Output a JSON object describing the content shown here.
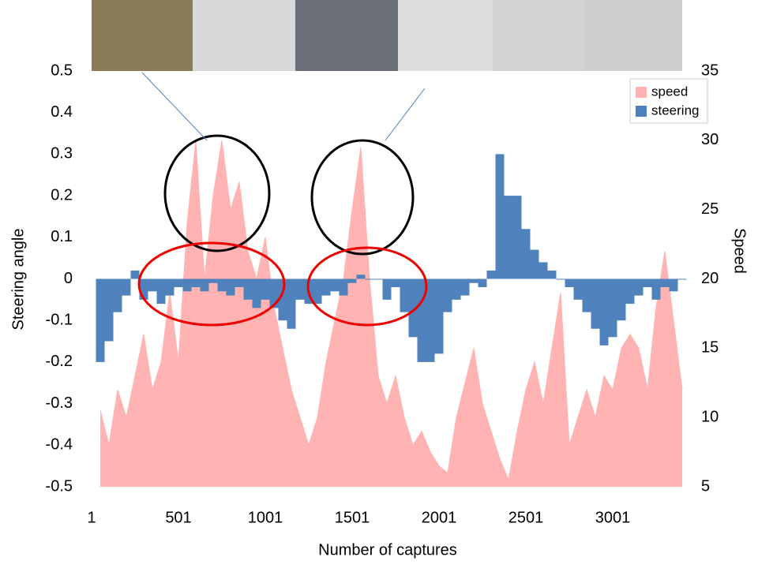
{
  "chart_data": {
    "type": "combo",
    "x_label": "Number of captures",
    "y_label": "Steering angle",
    "y2_label": "Speed",
    "x": [
      51,
      101,
      151,
      201,
      251,
      301,
      351,
      401,
      451,
      501,
      551,
      601,
      651,
      701,
      751,
      801,
      851,
      901,
      951,
      1001,
      1051,
      1101,
      1151,
      1201,
      1251,
      1301,
      1351,
      1401,
      1451,
      1501,
      1551,
      1601,
      1651,
      1701,
      1751,
      1801,
      1851,
      1901,
      1951,
      2001,
      2051,
      2101,
      2151,
      2201,
      2251,
      2301,
      2351,
      2401,
      2451,
      2501,
      2551,
      2601,
      2651,
      2701,
      2751,
      2801,
      2851,
      2901,
      2951,
      3001,
      3051,
      3101,
      3151,
      3201,
      3251,
      3301,
      3351,
      3401
    ],
    "series": [
      {
        "name": "speed",
        "type": "area",
        "axis": "y2",
        "color": "#ffb3b3",
        "values": [
          10.5,
          8,
          12,
          10,
          13,
          16,
          12,
          14,
          19,
          14,
          24,
          30,
          20,
          26,
          30,
          25,
          27,
          22,
          20,
          23,
          18,
          15,
          12,
          10,
          8,
          10,
          14,
          17,
          20,
          25,
          29.5,
          20,
          13,
          11,
          13,
          10,
          8,
          9,
          7.5,
          6.5,
          6,
          10,
          12.5,
          15,
          11,
          9,
          7,
          5.5,
          9,
          12,
          14,
          11,
          15,
          19,
          8,
          10,
          12,
          10,
          13,
          12,
          15,
          16,
          15,
          12,
          18,
          22,
          17,
          12
        ]
      },
      {
        "name": "steering",
        "type": "bar",
        "axis": "y",
        "color": "#4f81bd",
        "values": [
          -0.2,
          -0.15,
          -0.08,
          -0.04,
          0.02,
          -0.05,
          -0.03,
          -0.06,
          -0.04,
          -0.02,
          -0.03,
          -0.02,
          -0.03,
          -0.01,
          -0.03,
          -0.04,
          -0.02,
          -0.05,
          -0.07,
          -0.05,
          -0.07,
          -0.1,
          -0.12,
          -0.05,
          -0.06,
          -0.06,
          -0.04,
          -0.03,
          -0.04,
          -0.01,
          0.01,
          0,
          0,
          -0.05,
          -0.02,
          -0.08,
          -0.14,
          -0.2,
          -0.2,
          -0.18,
          -0.08,
          -0.05,
          -0.04,
          -0.01,
          -0.02,
          0.02,
          0.3,
          0.2,
          0.2,
          0.12,
          0.07,
          0.04,
          0.02,
          0,
          -0.02,
          -0.05,
          -0.08,
          -0.12,
          -0.16,
          -0.14,
          -0.1,
          -0.06,
          -0.04,
          -0.02,
          -0.05,
          -0.02,
          -0.03,
          0
        ]
      }
    ],
    "xlim": [
      1,
      3401
    ],
    "xticks": [
      1,
      501,
      1001,
      1501,
      2001,
      2501,
      3001
    ],
    "ylim": [
      -0.5,
      0.5
    ],
    "yticks": [
      -0.5,
      -0.4,
      -0.3,
      -0.2,
      -0.1,
      0,
      0.1,
      0.2,
      0.3,
      0.4,
      0.5
    ],
    "y2lim": [
      5,
      35
    ],
    "y2ticks": [
      5,
      10,
      15,
      20,
      25,
      30,
      35
    ],
    "legend": "top-right"
  }
}
